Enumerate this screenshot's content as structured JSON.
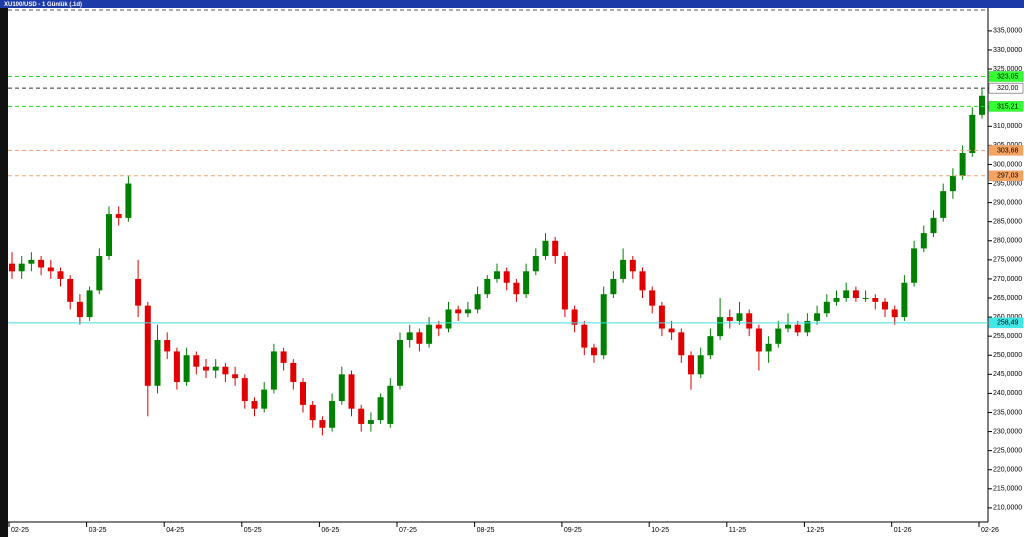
{
  "chart_data": {
    "type": "candlestick",
    "title": "XU100/USD - 1 Günlük (.1d)",
    "categories": [
      "02-25",
      null,
      null,
      null,
      null,
      null,
      null,
      null,
      "03-25",
      null,
      null,
      null,
      null,
      null,
      null,
      null,
      "04-25",
      null,
      null,
      null,
      null,
      null,
      null,
      null,
      "05-25",
      null,
      null,
      null,
      null,
      null,
      null,
      null,
      "06-25",
      null,
      null,
      null,
      null,
      null,
      null,
      null,
      "07-25",
      null,
      null,
      null,
      null,
      null,
      null,
      null,
      "08-25",
      null,
      null,
      null,
      null,
      null,
      null,
      null,
      null,
      "09-25",
      null,
      null,
      null,
      null,
      null,
      null,
      null,
      null,
      "10-25",
      null,
      null,
      null,
      null,
      null,
      null,
      null,
      "11-25",
      null,
      null,
      null,
      null,
      null,
      null,
      null,
      "12-25",
      null,
      null,
      null,
      null,
      null,
      null,
      null,
      null,
      "01-26",
      null,
      null,
      null,
      null,
      null,
      null,
      null,
      null,
      "02-26"
    ],
    "ohlc": [
      [
        274,
        277,
        270,
        272
      ],
      [
        272,
        276,
        270,
        274
      ],
      [
        274,
        277,
        272,
        275
      ],
      [
        275,
        276,
        271,
        273
      ],
      [
        273,
        275,
        270,
        272
      ],
      [
        272,
        273,
        268,
        270
      ],
      [
        270,
        271,
        262,
        264
      ],
      [
        264,
        266,
        258,
        260
      ],
      [
        260,
        268,
        259,
        267
      ],
      [
        267,
        278,
        266,
        276
      ],
      [
        276,
        289,
        275,
        287
      ],
      [
        287,
        289,
        284,
        286
      ],
      [
        286,
        297,
        285,
        295
      ],
      [
        270,
        275,
        260,
        263
      ],
      [
        263,
        264,
        234,
        242
      ],
      [
        242,
        258,
        240,
        254
      ],
      [
        254,
        256,
        249,
        251
      ],
      [
        251,
        252,
        241,
        243
      ],
      [
        243,
        252,
        242,
        250
      ],
      [
        250,
        251,
        245,
        247
      ],
      [
        247,
        249,
        244,
        246
      ],
      [
        246,
        249,
        244,
        247
      ],
      [
        247,
        248,
        243,
        245
      ],
      [
        245,
        247,
        242,
        244
      ],
      [
        244,
        245,
        236,
        238
      ],
      [
        238,
        239,
        234,
        236
      ],
      [
        236,
        243,
        235,
        241
      ],
      [
        241,
        253,
        240,
        251
      ],
      [
        251,
        252,
        246,
        248
      ],
      [
        248,
        249,
        241,
        243
      ],
      [
        243,
        244,
        235,
        237
      ],
      [
        237,
        238,
        231,
        233
      ],
      [
        233,
        234,
        229,
        231
      ],
      [
        231,
        240,
        230,
        238
      ],
      [
        238,
        247,
        237,
        245
      ],
      [
        245,
        246,
        234,
        236
      ],
      [
        236,
        237,
        230,
        232
      ],
      [
        232,
        235,
        230,
        233
      ],
      [
        233,
        240,
        232,
        239
      ],
      [
        232,
        244,
        231,
        242
      ],
      [
        242,
        256,
        241,
        254
      ],
      [
        254,
        258,
        252,
        256
      ],
      [
        256,
        257,
        251,
        253
      ],
      [
        253,
        260,
        252,
        258
      ],
      [
        258,
        259,
        255,
        257
      ],
      [
        257,
        264,
        256,
        262
      ],
      [
        262,
        263,
        259,
        261
      ],
      [
        261,
        264,
        260,
        262
      ],
      [
        262,
        268,
        261,
        266
      ],
      [
        266,
        271,
        265,
        270
      ],
      [
        270,
        274,
        269,
        272
      ],
      [
        272,
        273,
        267,
        269
      ],
      [
        269,
        270,
        264,
        266
      ],
      [
        266,
        274,
        265,
        272
      ],
      [
        272,
        278,
        271,
        276
      ],
      [
        276,
        282,
        275,
        280
      ],
      [
        280,
        281,
        274,
        276
      ],
      [
        276,
        277,
        260,
        262
      ],
      [
        262,
        263,
        256,
        258
      ],
      [
        258,
        259,
        250,
        252
      ],
      [
        252,
        253,
        248,
        250
      ],
      [
        250,
        268,
        249,
        266
      ],
      [
        266,
        272,
        265,
        270
      ],
      [
        270,
        278,
        269,
        275
      ],
      [
        275,
        276,
        270,
        272
      ],
      [
        272,
        273,
        265,
        267
      ],
      [
        267,
        268,
        261,
        263
      ],
      [
        263,
        264,
        255,
        257
      ],
      [
        257,
        259,
        254,
        256
      ],
      [
        256,
        257,
        248,
        250
      ],
      [
        250,
        251,
        241,
        245
      ],
      [
        245,
        252,
        244,
        250
      ],
      [
        250,
        257,
        249,
        255
      ],
      [
        255,
        265,
        254,
        260
      ],
      [
        260,
        262,
        257,
        259
      ],
      [
        259,
        264,
        258,
        261
      ],
      [
        261,
        262,
        255,
        257
      ],
      [
        257,
        258,
        246,
        251
      ],
      [
        251,
        255,
        248,
        253
      ],
      [
        253,
        259,
        252,
        257
      ],
      [
        257,
        261,
        256,
        258
      ],
      [
        258,
        259,
        255,
        256
      ],
      [
        256,
        261,
        255,
        259
      ],
      [
        259,
        263,
        258,
        261
      ],
      [
        261,
        266,
        260,
        264
      ],
      [
        264,
        267,
        263,
        265
      ],
      [
        265,
        269,
        264,
        267
      ],
      [
        267,
        268,
        264,
        265
      ],
      [
        265,
        267,
        264,
        265
      ],
      [
        265,
        266,
        262,
        264
      ],
      [
        264,
        265,
        260,
        262
      ],
      [
        262,
        263,
        258,
        260
      ],
      [
        260,
        271,
        259,
        269
      ],
      [
        269,
        280,
        268,
        278
      ],
      [
        278,
        284,
        277,
        282
      ],
      [
        282,
        288,
        281,
        286
      ],
      [
        286,
        295,
        285,
        293
      ],
      [
        293,
        299,
        291,
        297
      ],
      [
        297,
        305,
        296,
        303
      ],
      [
        303,
        315,
        302,
        313
      ],
      [
        313,
        320,
        312,
        318
      ]
    ],
    "up_color": "#008000",
    "down_color": "#e00000",
    "ylim": [
      206.3,
      341
    ],
    "yticks": [
      {
        "value": 210,
        "label": "210,0000"
      },
      {
        "value": 215,
        "label": "215,0000"
      },
      {
        "value": 220,
        "label": "220,0000"
      },
      {
        "value": 225,
        "label": "225,0000"
      },
      {
        "value": 230,
        "label": "230,0000"
      },
      {
        "value": 235,
        "label": "235,0000"
      },
      {
        "value": 240,
        "label": "240,0000"
      },
      {
        "value": 245,
        "label": "245,0000"
      },
      {
        "value": 250,
        "label": "250,0000"
      },
      {
        "value": 255,
        "label": "255,0000"
      },
      {
        "value": 260,
        "label": "260,0000"
      },
      {
        "value": 265,
        "label": "265,0000"
      },
      {
        "value": 270,
        "label": "270,0000"
      },
      {
        "value": 275,
        "label": "275,0000"
      },
      {
        "value": 280,
        "label": "280,0000"
      },
      {
        "value": 285,
        "label": "285,0000"
      },
      {
        "value": 290,
        "label": "290,0000"
      },
      {
        "value": 295,
        "label": "295,0000"
      },
      {
        "value": 300,
        "label": "300,0000"
      },
      {
        "value": 305,
        "label": "305,0000"
      },
      {
        "value": 310,
        "label": "310,0000"
      },
      {
        "value": 315,
        "label": "315,0000"
      },
      {
        "value": 320,
        "label": "320,0000"
      },
      {
        "value": 325,
        "label": "325,0000"
      },
      {
        "value": 330,
        "label": "330,0000"
      },
      {
        "value": 335,
        "label": "335,0000"
      }
    ],
    "levels": [
      {
        "value": 323.05,
        "label": "323,05",
        "color": "#22dd22",
        "box": "#33ff33",
        "dash": true
      },
      {
        "value": 320,
        "label": "320,00",
        "color": "#333333",
        "box": "#ffffff",
        "dash": true
      },
      {
        "value": 315.21,
        "label": "315,21",
        "color": "#22dd22",
        "box": "#33ff33",
        "dash": true
      },
      {
        "value": 303.68,
        "label": "303,68",
        "color": "#f0a070",
        "box": "#f4a460",
        "dash": true
      },
      {
        "value": 297.03,
        "label": "297,03",
        "color": "#f0a070",
        "box": "#f4a460",
        "dash": true
      },
      {
        "value": 258.49,
        "label": "258,49",
        "color": "#40e0e0",
        "box": "#40e8e8",
        "dash": false
      }
    ]
  }
}
